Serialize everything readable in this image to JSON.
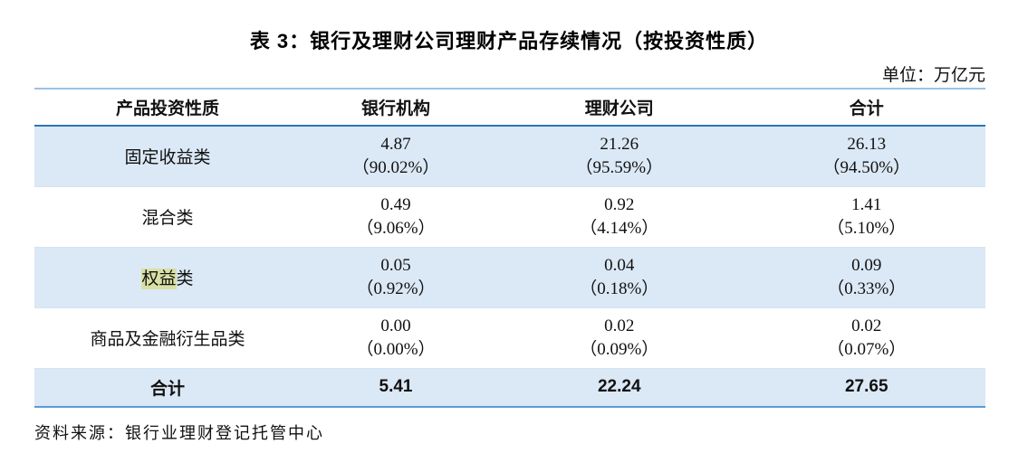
{
  "title": "表 3：银行及理财公司理财产品存续情况（按投资性质）",
  "unit_label": "单位：万亿元",
  "table": {
    "headers": [
      "产品投资性质",
      "银行机构",
      "理财公司",
      "合计"
    ],
    "rows": [
      {
        "category_highlight": "",
        "category": "固定收益类",
        "bank_amount": "4.87",
        "bank_pct": "（90.02%）",
        "wmc_amount": "21.26",
        "wmc_pct": "（95.59%）",
        "total_amount": "26.13",
        "total_pct": "（94.50%）"
      },
      {
        "category_highlight": "",
        "category": "混合类",
        "bank_amount": "0.49",
        "bank_pct": "（9.06%）",
        "wmc_amount": "0.92",
        "wmc_pct": "（4.14%）",
        "total_amount": "1.41",
        "total_pct": "（5.10%）"
      },
      {
        "category_highlight": "权益",
        "category": "类",
        "bank_amount": "0.05",
        "bank_pct": "（0.92%）",
        "wmc_amount": "0.04",
        "wmc_pct": "（0.18%）",
        "total_amount": "0.09",
        "total_pct": "（0.33%）"
      },
      {
        "category_highlight": "",
        "category": "商品及金融衍生品类",
        "bank_amount": "0.00",
        "bank_pct": "（0.00%）",
        "wmc_amount": "0.02",
        "wmc_pct": "（0.09%）",
        "total_amount": "0.02",
        "total_pct": "（0.07%）"
      }
    ],
    "total_row": {
      "label": "合计",
      "bank": "5.41",
      "wmc": "22.24",
      "total": "27.65"
    }
  },
  "source_note": "资料来源：银行业理财登记托管中心",
  "colors": {
    "shaded_row": "#dbe8f5",
    "header_rule": "#2e75b6",
    "top_rule": "#9cc2e5",
    "bottom_rule": "#5b9bd5",
    "highlight": "#d9e0a6"
  }
}
